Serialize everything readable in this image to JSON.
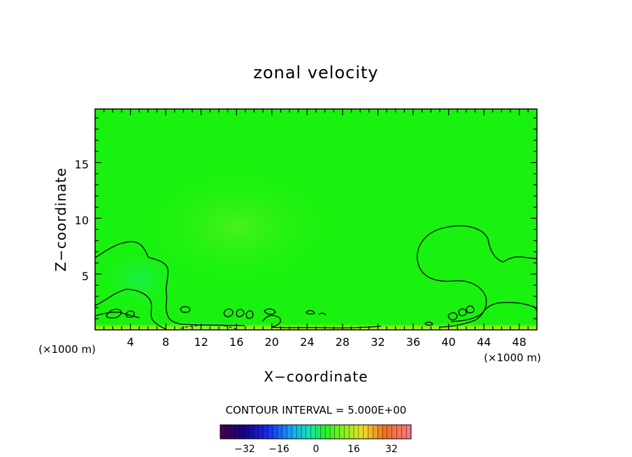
{
  "chart_data": {
    "type": "heatmap",
    "title": "zonal velocity",
    "xlabel": "X−coordinate",
    "ylabel": "Z−coordinate",
    "x_unit_left": "(×1000 m)",
    "x_unit_right": "(×1000 m)",
    "xlim": [
      0,
      50
    ],
    "ylim": [
      0,
      19.8
    ],
    "x_ticks": [
      "4",
      "8",
      "12",
      "16",
      "20",
      "24",
      "28",
      "32",
      "36",
      "40",
      "44",
      "48"
    ],
    "y_ticks": [
      "5",
      "10",
      "15"
    ],
    "contour_interval_label": "CONTOUR INTERVAL = 5.000E+00",
    "colorbar": {
      "range": [
        -40,
        40
      ],
      "ticks": [
        "−32",
        "−16",
        "0",
        "16",
        "32"
      ]
    },
    "background_value": 0,
    "features": [
      {
        "kind": "faint positive region",
        "cx": 19,
        "cz": 9,
        "value": 2
      },
      {
        "kind": "negative jet near surface",
        "cx": 14,
        "cz": 0.2,
        "value": -6
      }
    ],
    "colors": {
      "field_green": "#18f20e",
      "field_light": "#3cf517",
      "field_slightly_blue": "#14f032",
      "contour_line": "#000000"
    }
  }
}
